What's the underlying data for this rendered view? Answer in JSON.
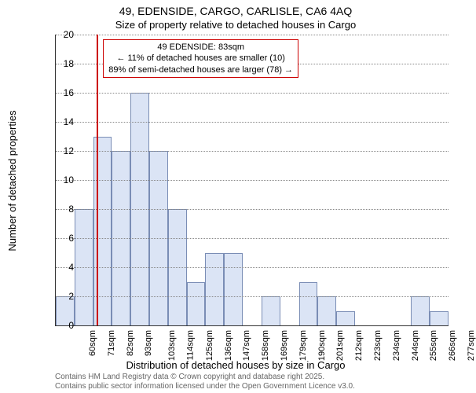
{
  "title": "49, EDENSIDE, CARGO, CARLISLE, CA6 4AQ",
  "subtitle": "Size of property relative to detached houses in Cargo",
  "ylabel": "Number of detached properties",
  "xlabel": "Distribution of detached houses by size in Cargo",
  "chart": {
    "type": "histogram",
    "ylim": [
      0,
      20
    ],
    "ytick_step": 2,
    "xtick_step": 11,
    "x_start": 60,
    "x_end": 280,
    "bar_color": "#dbe4f5",
    "bar_border": "#7a8db5",
    "grid_color": "#888888",
    "axis_color": "#333333",
    "background": "#ffffff",
    "categories": [
      60,
      71,
      82,
      93,
      103,
      114,
      125,
      136,
      147,
      158,
      169,
      179,
      190,
      201,
      212,
      223,
      234,
      244,
      255,
      266,
      277
    ],
    "values": [
      2,
      8,
      13,
      12,
      16,
      12,
      8,
      3,
      5,
      5,
      0,
      2,
      0,
      3,
      2,
      1,
      0,
      0,
      0,
      2,
      1
    ],
    "marker": {
      "x": 83,
      "color": "#cc0000",
      "label_top": "49 EDENSIDE: 83sqm",
      "label_l1": "← 11% of detached houses are smaller (10)",
      "label_l2": "89% of semi-detached houses are larger (78) →"
    },
    "fontsize_title": 14,
    "fontsize_axis": 13,
    "fontsize_tick": 12,
    "fontsize_xtick": 11,
    "fontsize_anno": 11
  },
  "footer_l1": "Contains HM Land Registry data © Crown copyright and database right 2025.",
  "footer_l2": "Contains public sector information licensed under the Open Government Licence v3.0."
}
